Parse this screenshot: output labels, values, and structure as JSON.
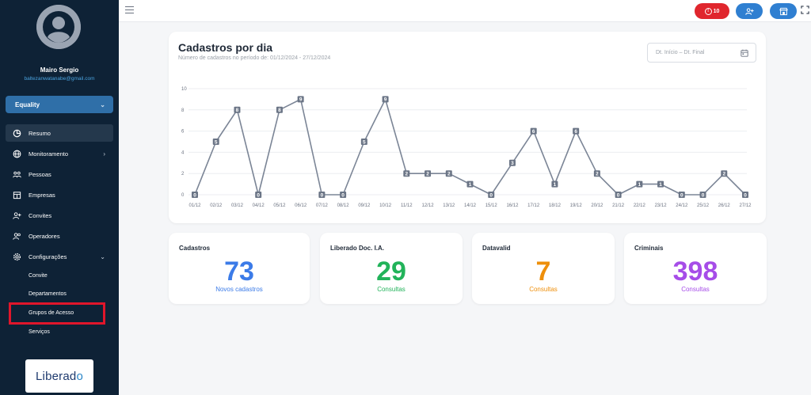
{
  "user": {
    "name": "Mairo Sergio",
    "email": "baltezanwatanabe@gmail.com"
  },
  "company_select": {
    "value": "Equality"
  },
  "nav": [
    {
      "label": "Resumo",
      "icon": "pie-chart-icon",
      "active": true
    },
    {
      "label": "Monitoramento",
      "icon": "globe-icon"
    },
    {
      "label": "Pessoas",
      "icon": "people-icon"
    },
    {
      "label": "Empresas",
      "icon": "building-icon"
    },
    {
      "label": "Convites",
      "icon": "user-plus-icon"
    },
    {
      "label": "Operadores",
      "icon": "users-icon"
    },
    {
      "label": "Configurações",
      "icon": "gear-icon"
    }
  ],
  "subnav": [
    "Convite",
    "Departamentos",
    "Grupos de Acesso",
    "Serviços"
  ],
  "logo": {
    "text_main": "Liberad",
    "text_accent": "o"
  },
  "topbar": {
    "alert_count": "10"
  },
  "chart_card": {
    "title": "Cadastros por dia",
    "subtitle": "Número de cadastros no período de: 01/12/2024 - 27/12/2024",
    "date_placeholder": "Dt. Início – Dt. Final"
  },
  "chart_data": {
    "type": "line",
    "categories": [
      "01/12",
      "02/12",
      "03/12",
      "04/12",
      "05/12",
      "06/12",
      "07/12",
      "08/12",
      "09/12",
      "10/12",
      "11/12",
      "12/12",
      "13/12",
      "14/12",
      "15/12",
      "16/12",
      "17/12",
      "18/12",
      "19/12",
      "20/12",
      "21/12",
      "22/12",
      "23/12",
      "24/12",
      "25/12",
      "26/12",
      "27/12"
    ],
    "values": [
      0,
      5,
      8,
      0,
      8,
      9,
      0,
      0,
      5,
      9,
      2,
      2,
      2,
      1,
      0,
      3,
      6,
      1,
      6,
      2,
      0,
      1,
      1,
      0,
      0,
      2,
      0
    ],
    "yticks": [
      0,
      2,
      4,
      6,
      8,
      10
    ],
    "ylim": [
      0,
      10
    ],
    "grid": true,
    "line_color": "#7b8596"
  },
  "stats": [
    {
      "title": "Cadastros",
      "value": "73",
      "label": "Novos cadastros",
      "color": "#3b7be8"
    },
    {
      "title": "Liberado Doc. I.A.",
      "value": "29",
      "label": "Consultas",
      "color": "#22b35a"
    },
    {
      "title": "Datavalid",
      "value": "7",
      "label": "Consultas",
      "color": "#ee8f0b"
    },
    {
      "title": "Criminais",
      "value": "398",
      "label": "Consultas",
      "color": "#a64de8"
    }
  ]
}
